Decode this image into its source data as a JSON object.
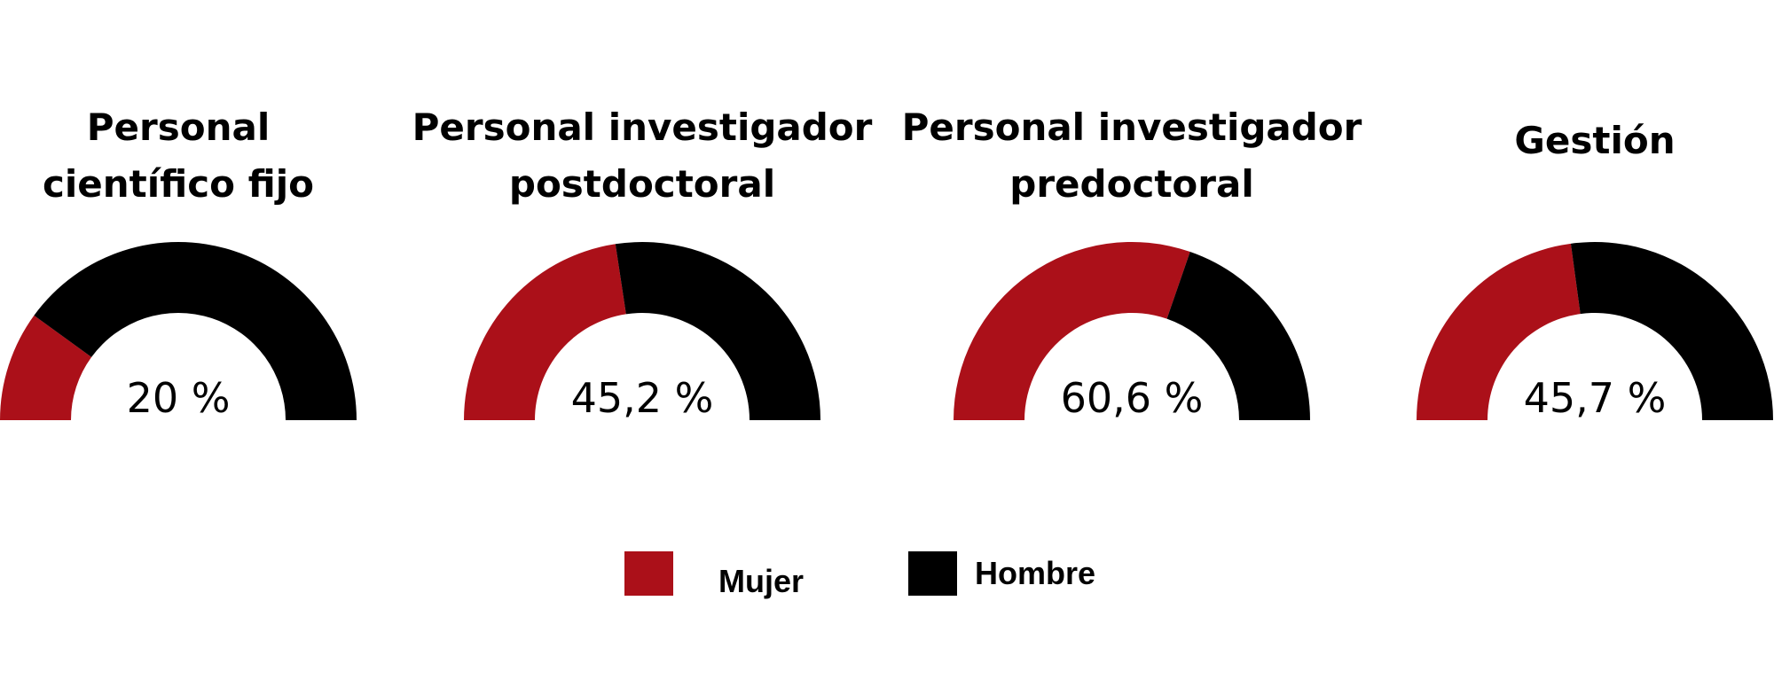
{
  "chart_data": {
    "type": "gauge",
    "title": "",
    "series_names": [
      "Mujer",
      "Hombre"
    ],
    "colors": {
      "Mujer": "#ab1019",
      "Hombre": "#000000"
    },
    "gauges": [
      {
        "title_lines": [
          "Personal",
          "científico fijo"
        ],
        "mujer_pct": 20,
        "label": "20 %"
      },
      {
        "title_lines": [
          "Personal investigador",
          "postdoctoral"
        ],
        "mujer_pct": 45.2,
        "label": "45,2 %"
      },
      {
        "title_lines": [
          "Personal investigador",
          "predoctoral"
        ],
        "mujer_pct": 60.6,
        "label": "60,6 %"
      },
      {
        "title_lines": [
          "Gestión"
        ],
        "mujer_pct": 45.7,
        "label": "45,7 %"
      }
    ],
    "legend": {
      "placement": "bottom-center",
      "items": [
        "Mujer",
        "Hombre"
      ]
    }
  }
}
